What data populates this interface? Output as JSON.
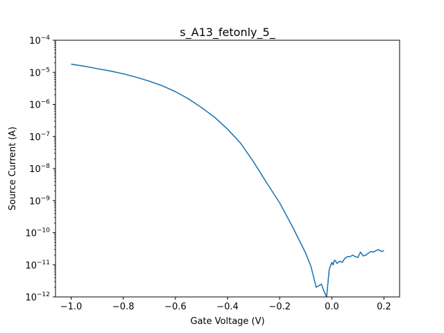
{
  "chart_data": {
    "type": "line",
    "title": "s_A13_fetonly_5_",
    "xlabel": "Gate Voltage (V)",
    "ylabel": "Source Current (A)",
    "xlim": [
      -1.06,
      0.26
    ],
    "ylim": [
      1e-12,
      0.0001
    ],
    "y_scale": "log",
    "grid": false,
    "x_ticks": [
      {
        "value": -1.0,
        "label": "−1.0"
      },
      {
        "value": -0.8,
        "label": "−0.8"
      },
      {
        "value": -0.6,
        "label": "−0.6"
      },
      {
        "value": -0.4,
        "label": "−0.4"
      },
      {
        "value": -0.2,
        "label": "−0.2"
      },
      {
        "value": 0.0,
        "label": "0.0"
      },
      {
        "value": 0.2,
        "label": "0.2"
      }
    ],
    "y_ticks": [
      {
        "exp": -12,
        "base": "10",
        "power": "−12"
      },
      {
        "exp": -11,
        "base": "10",
        "power": "−11"
      },
      {
        "exp": -10,
        "base": "10",
        "power": "−10"
      },
      {
        "exp": -9,
        "base": "10",
        "power": "−9"
      },
      {
        "exp": -8,
        "base": "10",
        "power": "−8"
      },
      {
        "exp": -7,
        "base": "10",
        "power": "−7"
      },
      {
        "exp": -6,
        "base": "10",
        "power": "−6"
      },
      {
        "exp": -5,
        "base": "10",
        "power": "−5"
      },
      {
        "exp": -4,
        "base": "10",
        "power": "−4"
      }
    ],
    "series": [
      {
        "color": "#1f77b4",
        "x": [
          -1.0,
          -0.95,
          -0.9,
          -0.85,
          -0.8,
          -0.75,
          -0.7,
          -0.65,
          -0.6,
          -0.55,
          -0.5,
          -0.45,
          -0.4,
          -0.35,
          -0.3,
          -0.25,
          -0.2,
          -0.15,
          -0.1,
          -0.08,
          -0.06,
          -0.04,
          -0.03,
          -0.02,
          -0.01,
          0.0,
          0.005,
          0.01,
          0.015,
          0.02,
          0.03,
          0.04,
          0.05,
          0.06,
          0.07,
          0.08,
          0.09,
          0.1,
          0.11,
          0.12,
          0.13,
          0.14,
          0.15,
          0.16,
          0.17,
          0.18,
          0.19,
          0.2
        ],
        "y": [
          1.8e-05,
          1.55e-05,
          1.3e-05,
          1.1e-05,
          9e-06,
          7e-06,
          5.3e-06,
          3.8e-06,
          2.5e-06,
          1.5e-06,
          8e-07,
          4e-07,
          1.7e-07,
          6.2e-08,
          1.6e-08,
          3.6e-09,
          8.5e-10,
          1.5e-10,
          2.3e-11,
          8.9e-12,
          2e-12,
          2.5e-12,
          1.5e-12,
          8e-13,
          7e-12,
          1.2e-11,
          1e-11,
          1.4e-11,
          1.3e-11,
          1.1e-11,
          1.3e-11,
          1.2e-11,
          1.6e-11,
          1.8e-11,
          1.8e-11,
          2e-11,
          1.8e-11,
          1.7e-11,
          2.5e-11,
          1.9e-11,
          2e-11,
          2.3e-11,
          2.6e-11,
          2.5e-11,
          2.8e-11,
          3e-11,
          2.6e-11,
          2.8e-11
        ]
      }
    ]
  }
}
